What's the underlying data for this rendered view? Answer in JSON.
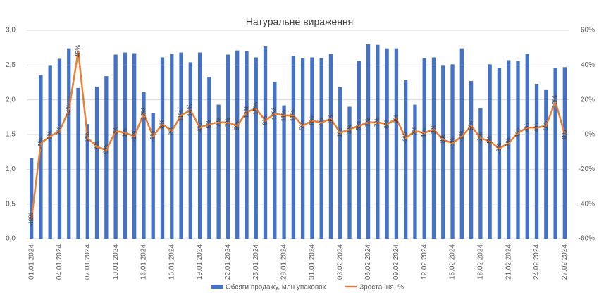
{
  "chart_data": {
    "type": "bar_line",
    "title": "Натуральне вираження",
    "categories": [
      "01.01.2024",
      null,
      null,
      "04.01.2024",
      null,
      null,
      "07.01.2024",
      null,
      null,
      "10.01.2024",
      null,
      null,
      "13.01.2024",
      null,
      null,
      "16.01.2024",
      null,
      null,
      "19.01.2024",
      null,
      null,
      "22.01.2024",
      null,
      null,
      "25.01.2024",
      null,
      null,
      "28.01.2024",
      null,
      null,
      "31.01.2024",
      null,
      null,
      "03.02.2024",
      null,
      null,
      "06.02.2024",
      null,
      null,
      "09.02.2024",
      null,
      null,
      "12.02.2024",
      null,
      null,
      "15.02.2024",
      null,
      null,
      "18.02.2024",
      null,
      null,
      "21.02.2024",
      null,
      null,
      "24.02.2024",
      null,
      null,
      "27.02.2024"
    ],
    "series": [
      {
        "name": "Обсяги продажу, млн упаковок",
        "color": "#4472c4",
        "type": "bar",
        "values": [
          1.16,
          2.36,
          2.49,
          2.59,
          2.74,
          2.17,
          1.65,
          2.19,
          2.34,
          2.65,
          2.68,
          2.67,
          2.11,
          1.81,
          2.61,
          2.66,
          2.68,
          2.54,
          2.68,
          2.33,
          1.93,
          2.65,
          2.71,
          2.7,
          2.61,
          2.77,
          2.26,
          1.92,
          2.63,
          2.6,
          2.61,
          2.6,
          2.66,
          2.18,
          1.9,
          2.56,
          2.8,
          2.79,
          2.74,
          2.74,
          2.29,
          1.93,
          2.6,
          2.61,
          2.49,
          2.51,
          2.74,
          2.27,
          1.88,
          2.51,
          2.46,
          2.57,
          2.56,
          2.66,
          2.23,
          2.14,
          2.46,
          2.47
        ]
      },
      {
        "name": "Зростання, %",
        "color": "#ed7d31",
        "type": "line",
        "axis": "y2",
        "values": [
          -49,
          -5,
          -1,
          2,
          14,
          48,
          -2,
          -7,
          -9,
          2,
          1,
          -1,
          12,
          -1,
          6,
          2,
          11,
          14,
          4,
          6,
          7,
          7,
          5,
          13,
          15,
          8,
          12,
          11,
          11,
          5,
          8,
          7,
          9,
          1,
          3,
          5,
          7,
          7,
          6,
          9,
          -2,
          2,
          1,
          3,
          -3,
          -5,
          -1,
          5,
          -2,
          -4,
          -8,
          -5,
          1,
          4,
          4,
          5,
          19,
          0
        ],
        "value_labels": [
          "-49%",
          "-5%",
          "-1%",
          "2%",
          "14%",
          "48%",
          "-2%",
          "-7%",
          "-9%",
          "2%",
          "1%",
          "-1%",
          "12%",
          "-1%",
          "6%",
          "2%",
          "11%",
          "14%",
          "4%",
          "6%",
          "7%",
          "7%",
          "5%",
          "13%",
          "15%",
          "8%",
          "12%",
          "11%",
          "11%",
          "5%",
          "8%",
          "7%",
          "9%",
          "1%",
          "3%",
          "5%",
          "7%",
          "7%",
          "6%",
          "9%",
          "-2%",
          "2%",
          "1%",
          "3%",
          "-3%",
          "-5%",
          "-1%",
          "5%",
          "-2%",
          "-4%",
          "-8%",
          "-5%",
          "1%",
          "4%",
          "4%",
          "5%",
          "19%",
          "0%"
        ]
      }
    ],
    "ylim": [
      0,
      3
    ],
    "yticks": [
      {
        "value": 0,
        "label": "0,0"
      },
      {
        "value": 0.5,
        "label": "0,5"
      },
      {
        "value": 1,
        "label": "1,0"
      },
      {
        "value": 1.5,
        "label": "1,5"
      },
      {
        "value": 2,
        "label": "2,0"
      },
      {
        "value": 2.5,
        "label": "2,5"
      },
      {
        "value": 3,
        "label": "3,0"
      }
    ],
    "y2lim": [
      -60,
      60
    ],
    "y2ticks": [
      {
        "value": -60,
        "label": "-60%"
      },
      {
        "value": -40,
        "label": "-40%"
      },
      {
        "value": -20,
        "label": "-20%"
      },
      {
        "value": 0,
        "label": "0%"
      },
      {
        "value": 20,
        "label": "20%"
      },
      {
        "value": 40,
        "label": "40%"
      },
      {
        "value": 60,
        "label": "60%"
      }
    ],
    "grid": true,
    "legend": "bottom"
  }
}
